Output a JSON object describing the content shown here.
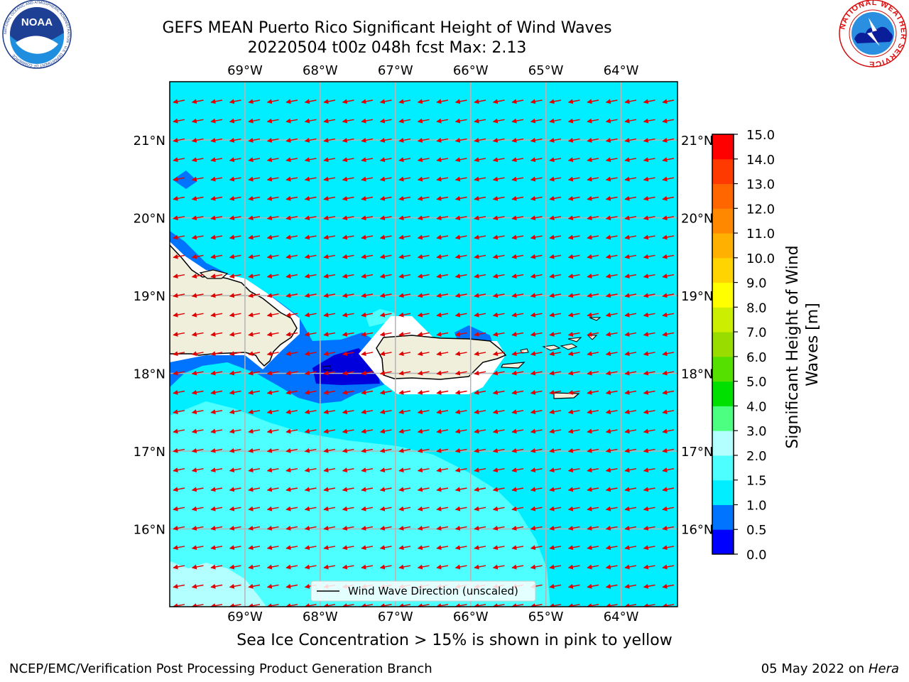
{
  "header": {
    "title_line1": "GEFS MEAN Puerto Rico Significant Height of Wind Waves",
    "title_line2": "20220504 t00z 048h fcst   Max: 2.13"
  },
  "logos": {
    "left_name": "NOAA",
    "left_ring_text": "NATIONAL OCEANIC AND ATMOSPHERIC ADMINISTRATION · U.S. DEPARTMENT OF COMMERCE",
    "right_ring_text": "NATIONAL WEATHER SERVICE"
  },
  "map": {
    "lon_labels": [
      "69°W",
      "68°W",
      "67°W",
      "66°W",
      "65°W",
      "64°W"
    ],
    "lon_values": [
      -69,
      -68,
      -67,
      -66,
      -65,
      -64
    ],
    "lat_labels": [
      "16°N",
      "17°N",
      "18°N",
      "19°N",
      "20°N",
      "21°N"
    ],
    "lat_values": [
      16,
      17,
      18,
      19,
      20,
      21
    ],
    "lon_range": [
      -70.0,
      -63.25
    ],
    "lat_range": [
      15.0,
      21.75
    ],
    "grid": true,
    "wind_direction": "from east-northeast (vectors pointing west-southwest)",
    "legend_label": "Wind Wave Direction (unscaled)",
    "legend_position": "bottom-center"
  },
  "colorbar": {
    "label": "Significant Height of Wind Waves [m]",
    "tick_labels": [
      "0.0",
      "0.5",
      "1.0",
      "1.5",
      "2.0",
      "3.0",
      "4.0",
      "5.0",
      "6.0",
      "7.0",
      "8.0",
      "9.0",
      "10.0",
      "11.0",
      "12.0",
      "13.0",
      "14.0",
      "15.0"
    ],
    "colors": [
      "#0000ff",
      "#0073ff",
      "#00eeff",
      "#4dffff",
      "#b3ffff",
      "#4dff80",
      "#00e000",
      "#55e000",
      "#99dd00",
      "#ccee00",
      "#ffff00",
      "#ffd400",
      "#ffb000",
      "#ff8800",
      "#ff6600",
      "#ff3a00",
      "#ff0000"
    ]
  },
  "chart_data": {
    "type": "heatmap",
    "title": "GEFS MEAN Puerto Rico Significant Height of Wind Waves",
    "subtitle": "20220504 t00z 048h fcst   Max: 2.13",
    "variable": "Significant Height of Wind Waves [m]",
    "max_value": 2.13,
    "contour_levels": [
      0.0,
      0.5,
      1.0,
      1.5,
      2.0,
      3.0,
      4.0,
      5.0,
      6.0,
      7.0,
      8.0,
      9.0,
      10.0,
      11.0,
      12.0,
      13.0,
      14.0,
      15.0
    ],
    "xlim": [
      -70.0,
      -63.25
    ],
    "ylim": [
      15.0,
      21.75
    ],
    "regions": [
      {
        "range": "1.0-1.5",
        "description": "most open ocean north and east of the islands"
      },
      {
        "range": "1.5-2.0",
        "description": "Caribbean Sea south of Hispaniola and Puerto Rico"
      },
      {
        "range": "2.0-3.0",
        "description": "southwest corner of domain"
      },
      {
        "range": "0.5-1.0",
        "description": "Mona Passage and lee of Hispaniola"
      },
      {
        "range": "0.0-0.5",
        "description": "western Puerto Rico coastal waters"
      }
    ]
  },
  "footer": {
    "sea_ice_note": "Sea Ice Concentration > 15% is shown in pink to yellow",
    "branch": "NCEP/EMC/Verification Post Processing Product Generation Branch",
    "date": "05 May 2022 on",
    "host": "Hera"
  }
}
